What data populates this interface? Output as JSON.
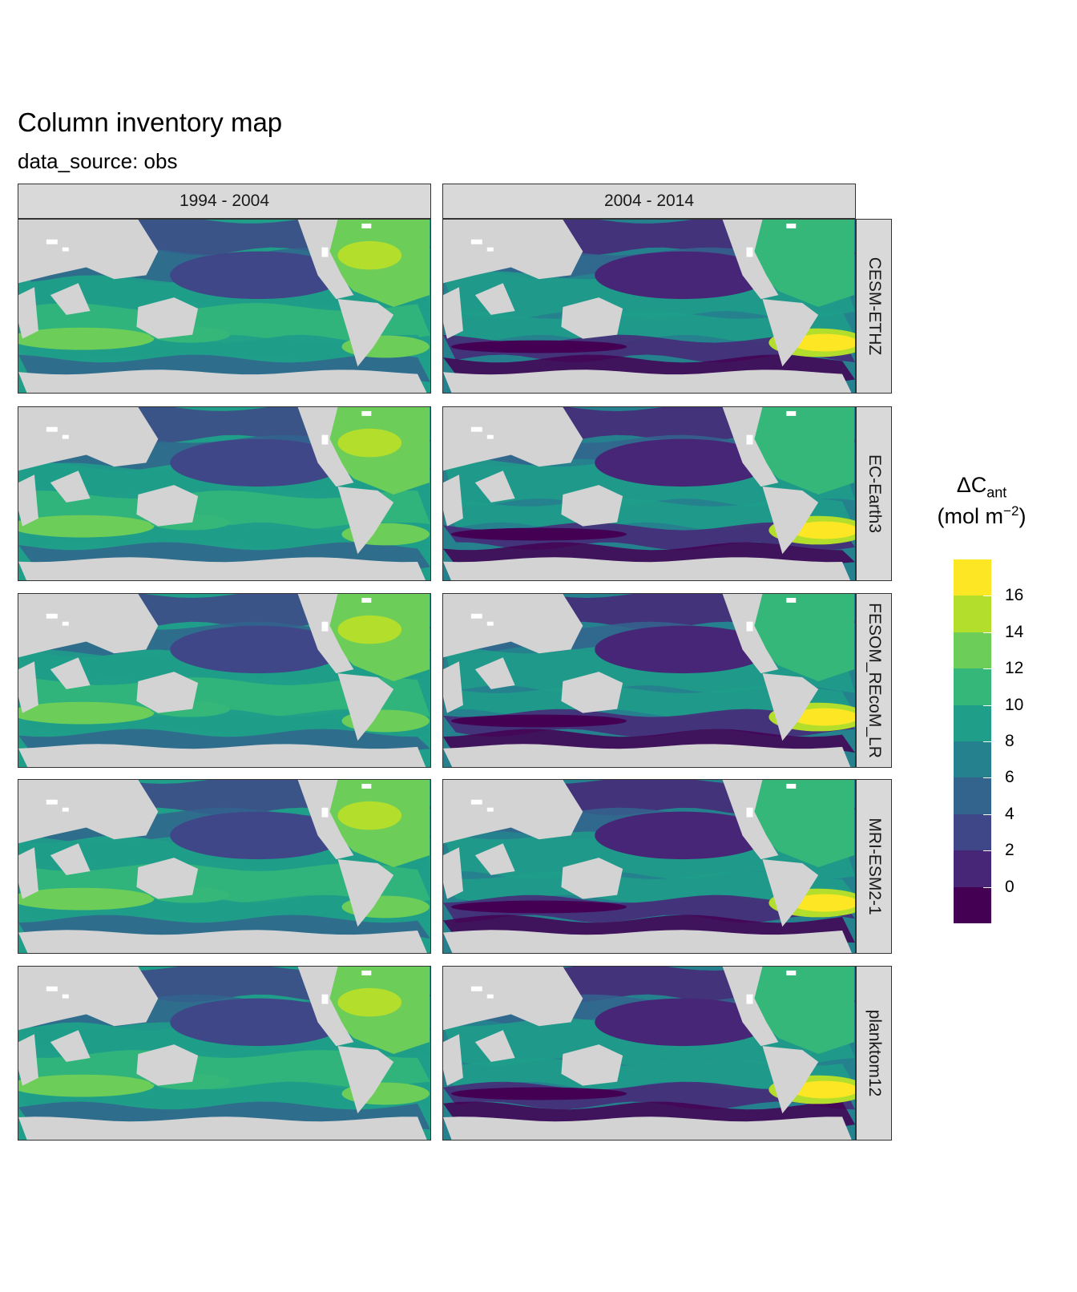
{
  "title": "Column inventory map",
  "subtitle": "data_source: obs",
  "columns": [
    "1994 - 2004",
    "2004 - 2014"
  ],
  "rows": [
    "CESM-ETHZ",
    "EC-Earth3",
    "FESOM_REcoM_LR",
    "MRI-ESM2-1",
    "planktom12"
  ],
  "legend": {
    "title_main": "ΔC",
    "title_sub": "ant",
    "unit_prefix": "(mol m",
    "unit_sup": "−2",
    "unit_suffix": ")",
    "ticks": [
      "0",
      "2",
      "4",
      "6",
      "8",
      "10",
      "12",
      "14",
      "16"
    ],
    "tick_values": [
      0,
      2,
      4,
      6,
      8,
      10,
      12,
      14,
      16
    ],
    "range": [
      -2,
      18
    ],
    "colors": [
      "#440154",
      "#482677",
      "#3f4788",
      "#32648e",
      "#26818e",
      "#1f9e89",
      "#35b779",
      "#6dcd59",
      "#b4de2c",
      "#fde725"
    ]
  },
  "colors": {
    "land": "#d3d3d3",
    "sea_ice": "#ffffff",
    "strip": "#d9d9d9"
  }
}
